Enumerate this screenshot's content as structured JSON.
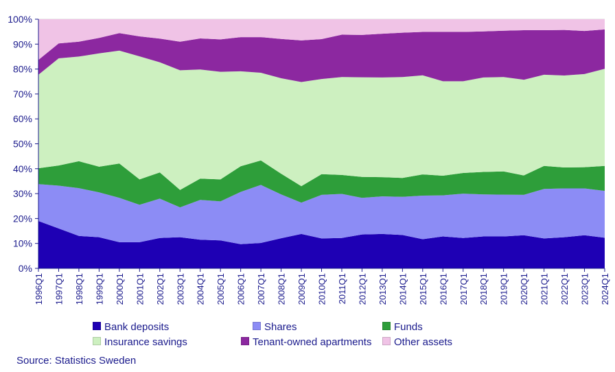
{
  "chart_data": {
    "type": "area",
    "stacked": true,
    "x": [
      "1996Q1",
      "1997Q1",
      "1998Q1",
      "1999Q1",
      "2000Q1",
      "2001Q1",
      "2002Q1",
      "2003Q1",
      "2004Q1",
      "2005Q1",
      "2006Q1",
      "2007Q1",
      "2008Q1",
      "2009Q1",
      "2010Q1",
      "2011Q1",
      "2012Q1",
      "2013Q1",
      "2014Q1",
      "2015Q1",
      "2016Q1",
      "2017Q1",
      "2018Q1",
      "2019Q1",
      "2020Q1",
      "2021Q1",
      "2022Q1",
      "2023Q1",
      "2024Q1"
    ],
    "series": [
      {
        "name": "Bank deposits",
        "color": "#1e00b4",
        "values": [
          19,
          16,
          13,
          12.5,
          10.5,
          10.5,
          12.2,
          12.5,
          11.5,
          11.2,
          9.7,
          10.2,
          12.1,
          13.8,
          12,
          12.2,
          13.6,
          13.8,
          13.4,
          11.7,
          12.8,
          12.2,
          12.8,
          12.8,
          13.3,
          12,
          12.5,
          13.3,
          12.3
        ]
      },
      {
        "name": "Shares",
        "color": "#8c8cf5",
        "values": [
          14.8,
          17.2,
          19.2,
          18,
          17.8,
          15,
          15.8,
          12,
          16,
          15.7,
          21,
          23.3,
          17.6,
          12.6,
          17.5,
          17.7,
          14.7,
          15.1,
          15.3,
          17.5,
          16.5,
          17.8,
          16.9,
          16.8,
          16.2,
          19.9,
          19.6,
          18.8,
          18.8
        ]
      },
      {
        "name": "Funds",
        "color": "#2e9e3a",
        "values": [
          6.4,
          8.1,
          10.8,
          10.3,
          13.8,
          10.2,
          10.5,
          7,
          8.5,
          8.8,
          10.3,
          9.8,
          8.3,
          6.6,
          8.3,
          7.6,
          8.4,
          7.7,
          7.6,
          8.5,
          7.9,
          8.3,
          9,
          9.3,
          7.8,
          9.2,
          8.4,
          8.5,
          10
        ]
      },
      {
        "name": "Insurance savings",
        "color": "#cdf0c0",
        "values": [
          37.5,
          43,
          42,
          45.5,
          45.3,
          49.4,
          44.2,
          48,
          43.8,
          43.2,
          38.1,
          35.2,
          38.3,
          41.8,
          38.2,
          39.3,
          40,
          40,
          40.5,
          39.8,
          37.9,
          36.8,
          37.9,
          37.9,
          38.4,
          36.6,
          36.9,
          37.4,
          39
        ]
      },
      {
        "name": "Tenant-owned apartments",
        "color": "#8c28a0",
        "values": [
          6,
          6,
          6,
          6.2,
          7,
          8,
          9.5,
          11.5,
          12.5,
          13,
          13.7,
          14.3,
          15.8,
          16.7,
          16,
          17,
          17,
          17.6,
          17.8,
          17.4,
          19.8,
          19.8,
          18.5,
          18.6,
          19.9,
          17.9,
          18.3,
          17.3,
          15.8
        ]
      },
      {
        "name": "Other assets",
        "color": "#f0c3e6",
        "values": [
          16.3,
          9.7,
          9,
          7.5,
          5.6,
          6.9,
          7.8,
          9,
          7.7,
          8.1,
          7.2,
          7.4,
          7.9,
          8.5,
          8,
          6.2,
          6.3,
          5.8,
          5.4,
          5.1,
          5.1,
          5.1,
          4.9,
          4.6,
          4.4,
          4.4,
          4.3,
          4.7,
          4.1
        ]
      }
    ],
    "ylim": [
      0,
      100
    ],
    "yticks": [
      "0%",
      "10%",
      "20%",
      "30%",
      "40%",
      "50%",
      "60%",
      "70%",
      "80%",
      "90%",
      "100%"
    ],
    "grid": true,
    "legend_position": "bottom"
  },
  "source": "Source: Statistics Sweden"
}
